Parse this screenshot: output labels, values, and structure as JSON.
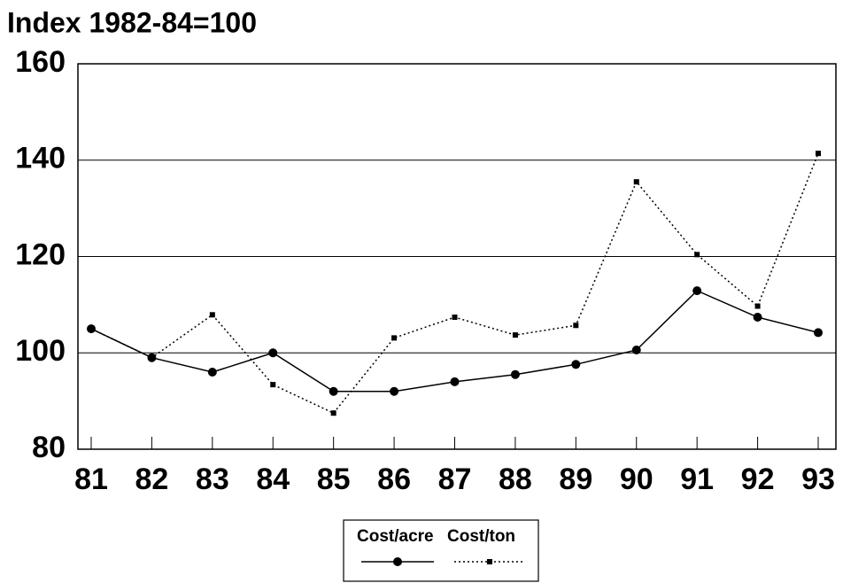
{
  "chart_data": {
    "type": "line",
    "title": "Index 1982-84=100",
    "categories": [
      "81",
      "82",
      "83",
      "84",
      "85",
      "86",
      "87",
      "88",
      "89",
      "90",
      "91",
      "92",
      "93"
    ],
    "series": [
      {
        "name": "Cost/acre",
        "color": "#000000",
        "style": "solid",
        "marker": "circle",
        "values": [
          105,
          99,
          96,
          100,
          92,
          92,
          94,
          95.5,
          97.6,
          100.6,
          112.9,
          107.4,
          104.2
        ]
      },
      {
        "name": "Cost/ton",
        "color": "#000000",
        "style": "dotted",
        "marker": "square",
        "values": [
          105,
          99,
          107.9,
          93.4,
          87.5,
          103.1,
          107.4,
          103.7,
          105.7,
          135.5,
          120.4,
          109.7,
          141.4
        ]
      }
    ],
    "ylim": [
      80,
      160
    ],
    "yticks": [
      80,
      100,
      120,
      140,
      160
    ],
    "grid": true,
    "legend": "bottom"
  }
}
